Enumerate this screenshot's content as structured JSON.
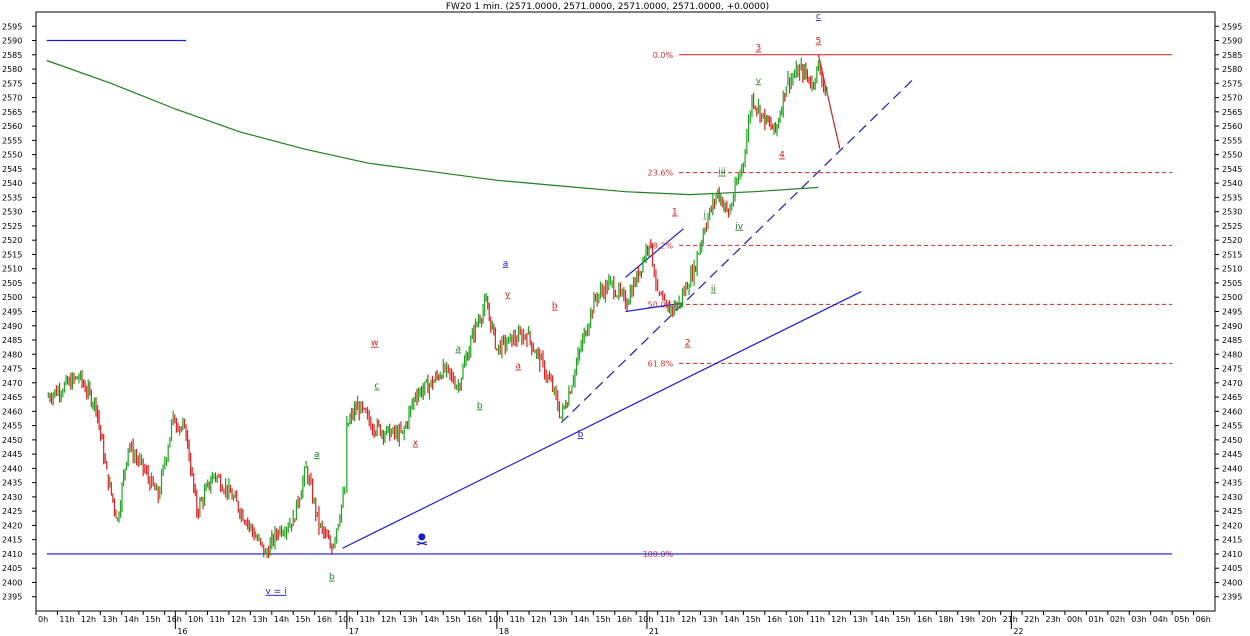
{
  "chart_data": {
    "type": "candlestick",
    "title": "FW20 1 min. (2571.0000, 2571.0000, 2571.0000, 2571.0000, +0.0000)",
    "ylim": [
      2390,
      2600
    ],
    "y_ticks": [
      2395,
      2400,
      2405,
      2410,
      2415,
      2420,
      2425,
      2430,
      2435,
      2440,
      2445,
      2450,
      2455,
      2460,
      2465,
      2470,
      2475,
      2480,
      2485,
      2490,
      2495,
      2500,
      2505,
      2510,
      2515,
      2520,
      2525,
      2530,
      2535,
      2540,
      2545,
      2550,
      2555,
      2560,
      2565,
      2570,
      2575,
      2580,
      2585,
      2590,
      2595
    ],
    "x_labels": [
      "0h",
      "11h",
      "12h",
      "13h",
      "14h",
      "15h",
      "16h",
      "10h",
      "11h",
      "12h",
      "13h",
      "14h",
      "15h",
      "16h",
      "10h",
      "11h",
      "12h",
      "13h",
      "14h",
      "15h",
      "16h",
      "10h",
      "11h",
      "12h",
      "13h",
      "14h",
      "15h",
      "16h",
      "10h",
      "11h",
      "12h",
      "13h",
      "14h",
      "15h",
      "16h",
      "10h",
      "11h",
      "12h",
      "13h",
      "14h",
      "15h",
      "16h",
      "18h",
      "19h",
      "20h",
      "21h",
      "22h",
      "23h",
      "00h",
      "01h",
      "02h",
      "03h",
      "04h",
      "05h",
      "06h"
    ],
    "date_labels": [
      "16",
      "17",
      "18",
      "21",
      "22"
    ],
    "price_path": [
      [
        0,
        2465
      ],
      [
        1.5,
        2472
      ],
      [
        2.3,
        2462
      ],
      [
        2.8,
        2438
      ],
      [
        3.3,
        2422
      ],
      [
        3.8,
        2448
      ],
      [
        4.5,
        2440
      ],
      [
        5.2,
        2430
      ],
      [
        5.9,
        2458
      ],
      [
        6.5,
        2452
      ],
      [
        7.0,
        2425
      ],
      [
        7.8,
        2438
      ],
      [
        8.5,
        2432
      ],
      [
        9.3,
        2422
      ],
      [
        10.2,
        2410
      ],
      [
        10.8,
        2418
      ],
      [
        11.5,
        2422
      ],
      [
        12.1,
        2440
      ],
      [
        12.7,
        2420
      ],
      [
        13.3,
        2412
      ],
      [
        13.9,
        2432
      ],
      [
        14.0,
        2455
      ],
      [
        14.5,
        2462
      ],
      [
        15.2,
        2455
      ],
      [
        16.0,
        2452
      ],
      [
        16.6,
        2452
      ],
      [
        17.2,
        2466
      ],
      [
        18.0,
        2470
      ],
      [
        18.5,
        2475
      ],
      [
        19.2,
        2469
      ],
      [
        20.0,
        2490
      ],
      [
        20.5,
        2498
      ],
      [
        21.0,
        2482
      ],
      [
        21.7,
        2485
      ],
      [
        22.4,
        2487
      ],
      [
        23.0,
        2478
      ],
      [
        23.6,
        2468
      ],
      [
        24.0,
        2458
      ],
      [
        24.5,
        2470
      ],
      [
        25.0,
        2485
      ],
      [
        25.6,
        2500
      ],
      [
        26.3,
        2505
      ],
      [
        27.0,
        2498
      ],
      [
        27.6,
        2508
      ],
      [
        28.1,
        2520
      ],
      [
        28.5,
        2502
      ],
      [
        28.9,
        2495
      ],
      [
        29.5,
        2498
      ],
      [
        30.2,
        2510
      ],
      [
        30.7,
        2525
      ],
      [
        31.3,
        2537
      ],
      [
        31.8,
        2529
      ],
      [
        32.5,
        2548
      ],
      [
        32.9,
        2570
      ],
      [
        33.5,
        2562
      ],
      [
        34.0,
        2558
      ],
      [
        34.5,
        2575
      ],
      [
        35.2,
        2580
      ],
      [
        35.7,
        2575
      ],
      [
        36.0,
        2581
      ],
      [
        36.4,
        2571
      ]
    ],
    "moving_average": [
      [
        0,
        2583
      ],
      [
        3,
        2575
      ],
      [
        6,
        2566
      ],
      [
        9,
        2558
      ],
      [
        12,
        2552
      ],
      [
        15,
        2547
      ],
      [
        18,
        2544
      ],
      [
        21,
        2541
      ],
      [
        24,
        2539
      ],
      [
        27,
        2537
      ],
      [
        30,
        2536
      ],
      [
        33,
        2537
      ],
      [
        36,
        2538.5
      ]
    ],
    "trendlines": [
      {
        "color": "#1a1ad0",
        "dash": false,
        "points": [
          [
            13.8,
            2412
          ],
          [
            38.0,
            2502
          ]
        ]
      },
      {
        "color": "#1a1ad0",
        "dash": true,
        "points": [
          [
            24.0,
            2456
          ],
          [
            40.5,
            2577
          ]
        ]
      },
      {
        "color": "#1a1ad0",
        "dash": false,
        "points": [
          [
            0,
            2590
          ],
          [
            6.5,
            2590
          ]
        ]
      },
      {
        "color": "#1a1ad0",
        "dash": false,
        "points": [
          [
            0,
            2410
          ],
          [
            52.5,
            2410
          ]
        ]
      },
      {
        "color": "#1a1ad0",
        "dash": false,
        "points": [
          [
            27.0,
            2507
          ],
          [
            29.7,
            2524
          ]
        ]
      },
      {
        "color": "#1a1ad0",
        "dash": false,
        "points": [
          [
            27.0,
            2495
          ],
          [
            29.7,
            2498
          ]
        ]
      },
      {
        "color": "#d02020",
        "dash": false,
        "points": [
          [
            36.0,
            2585
          ],
          [
            37.0,
            2552
          ]
        ]
      }
    ],
    "fibonacci": {
      "top": 2585,
      "bottom": 2410,
      "start_x": 29.5,
      "end_x": 52.5,
      "levels": [
        {
          "label": "0.0%",
          "value": 2585,
          "dashed": false
        },
        {
          "label": "23.6%",
          "value": 2543.7,
          "dashed": true
        },
        {
          "label": "38.2%",
          "value": 2518.2,
          "dashed": true
        },
        {
          "label": "50.0%",
          "value": 2497.5,
          "dashed": true
        },
        {
          "label": "61.8%",
          "value": 2476.8,
          "dashed": true
        },
        {
          "label": "100.0%",
          "value": 2410,
          "dashed": false
        }
      ]
    },
    "wave_labels": [
      {
        "text": "c",
        "x": 36.0,
        "y": 2597.5,
        "color": "#1a1ad0"
      },
      {
        "text": "5",
        "x": 36.0,
        "y": 2589,
        "color": "#d02020"
      },
      {
        "text": "3",
        "x": 33.2,
        "y": 2586.5,
        "color": "#d02020"
      },
      {
        "text": "v",
        "x": 33.2,
        "y": 2575,
        "color": "#208020"
      },
      {
        "text": "4",
        "x": 34.3,
        "y": 2549,
        "color": "#d02020"
      },
      {
        "text": "iii",
        "x": 31.5,
        "y": 2543,
        "color": "#208020"
      },
      {
        "text": "iv",
        "x": 32.3,
        "y": 2524,
        "color": "#208020"
      },
      {
        "text": "1",
        "x": 29.3,
        "y": 2529,
        "color": "#d02020"
      },
      {
        "text": "i",
        "x": 30.7,
        "y": 2528,
        "color": "#208020"
      },
      {
        "text": "ii",
        "x": 31.1,
        "y": 2502,
        "color": "#208020"
      },
      {
        "text": "2",
        "x": 29.9,
        "y": 2483,
        "color": "#d02020"
      },
      {
        "text": "a",
        "x": 21.4,
        "y": 2511,
        "color": "#1a1ad0"
      },
      {
        "text": "y",
        "x": 21.5,
        "y": 2500,
        "color": "#d02020"
      },
      {
        "text": "b",
        "x": 23.7,
        "y": 2496,
        "color": "#d02020"
      },
      {
        "text": "b",
        "x": 24.9,
        "y": 2451,
        "color": "#1a1ad0"
      },
      {
        "text": "a",
        "x": 19.2,
        "y": 2481,
        "color": "#208020"
      },
      {
        "text": "b",
        "x": 20.2,
        "y": 2461,
        "color": "#208020"
      },
      {
        "text": "a",
        "x": 22.0,
        "y": 2475,
        "color": "#d02020"
      },
      {
        "text": "w",
        "x": 15.3,
        "y": 2483,
        "color": "#d02020"
      },
      {
        "text": "c",
        "x": 15.4,
        "y": 2468,
        "color": "#208020"
      },
      {
        "text": "x",
        "x": 17.2,
        "y": 2448,
        "color": "#d02020"
      },
      {
        "text": "a",
        "x": 12.6,
        "y": 2444,
        "color": "#208020"
      },
      {
        "text": "v = i",
        "x": 10.7,
        "y": 2396,
        "color": "#1a1ad0"
      },
      {
        "text": "b",
        "x": 13.3,
        "y": 2401,
        "color": "#208020"
      }
    ]
  }
}
